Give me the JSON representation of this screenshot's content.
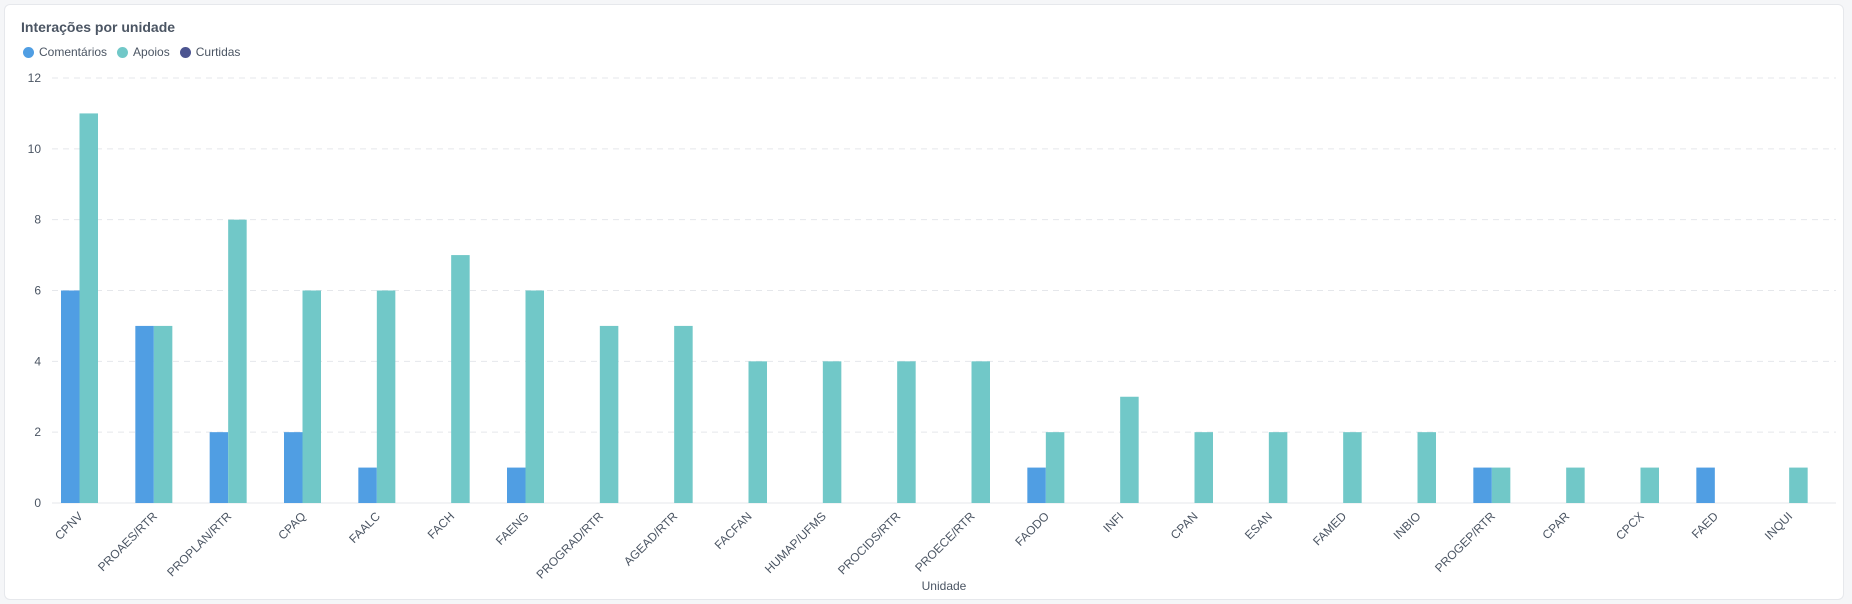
{
  "chart_data": {
    "type": "bar",
    "title": "Interações por unidade",
    "xlabel": "Unidade",
    "ylabel": "",
    "ylim": [
      0,
      12
    ],
    "yticks": [
      0,
      2,
      4,
      6,
      8,
      10,
      12
    ],
    "grid": true,
    "legend_position": "top-left",
    "categories": [
      "CPNV",
      "PROAES/RTR",
      "PROPLAN/RTR",
      "CPAQ",
      "FAALC",
      "FACH",
      "FAENG",
      "PROGRAD/RTR",
      "AGEAD/RTR",
      "FACFAN",
      "HUMAP/UFMS",
      "PROCIDS/RTR",
      "PROECE/RTR",
      "FAODO",
      "INFI",
      "CPAN",
      "ESAN",
      "FAMED",
      "INBIO",
      "PROGEP/RTR",
      "CPAR",
      "CPCX",
      "FAED",
      "INQUI"
    ],
    "series": [
      {
        "name": "Comentários",
        "color": "#509ee3",
        "values": [
          6,
          5,
          2,
          2,
          1,
          0,
          1,
          0,
          0,
          0,
          0,
          0,
          0,
          1,
          0,
          0,
          0,
          0,
          0,
          1,
          0,
          0,
          1,
          0
        ]
      },
      {
        "name": "Apoios",
        "color": "#71c8c8",
        "values": [
          11,
          5,
          8,
          6,
          6,
          7,
          6,
          5,
          5,
          4,
          4,
          4,
          4,
          2,
          3,
          2,
          2,
          2,
          2,
          1,
          1,
          1,
          0,
          1
        ]
      },
      {
        "name": "Curtidas",
        "color": "#4c5490",
        "values": [
          0,
          0,
          0,
          0,
          0,
          0,
          0,
          0,
          0,
          0,
          0,
          0,
          0,
          0,
          0,
          0,
          0,
          0,
          0,
          0,
          0,
          0,
          0,
          0
        ]
      }
    ]
  }
}
